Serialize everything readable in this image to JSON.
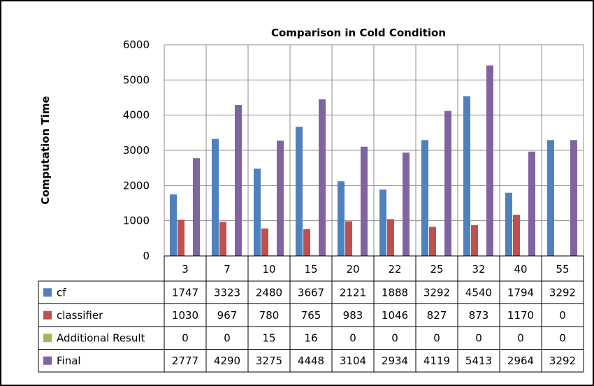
{
  "chart_data": {
    "type": "bar",
    "title": "Comparison in Cold Condition",
    "xlabel": "",
    "ylabel": "Computation Time",
    "ylim": [
      0,
      6000
    ],
    "yticks": [
      0,
      1000,
      2000,
      3000,
      4000,
      5000,
      6000
    ],
    "grid": true,
    "legend": "data-table",
    "categories": [
      "3",
      "7",
      "10",
      "15",
      "20",
      "22",
      "25",
      "32",
      "40",
      "55"
    ],
    "series": [
      {
        "name": "cf",
        "color": "#4F81BD",
        "values": [
          1747,
          3323,
          2480,
          3667,
          2121,
          1888,
          3292,
          4540,
          1794,
          3292
        ]
      },
      {
        "name": "classifier",
        "color": "#C0504D",
        "values": [
          1030,
          967,
          780,
          765,
          983,
          1046,
          827,
          873,
          1170,
          0
        ]
      },
      {
        "name": "Additional Result",
        "color": "#9BBB59",
        "values": [
          0,
          0,
          15,
          16,
          0,
          0,
          0,
          0,
          0,
          0
        ]
      },
      {
        "name": "Final",
        "color": "#8064A2",
        "values": [
          2777,
          4290,
          3275,
          4448,
          3104,
          2934,
          4119,
          5413,
          2964,
          3292
        ]
      }
    ]
  }
}
